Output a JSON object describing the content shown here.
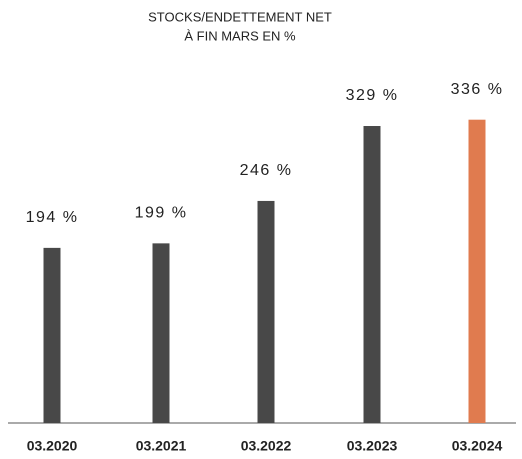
{
  "chart_data": {
    "type": "bar",
    "title": [
      "STOCKS/ENDETTEMENT NET",
      "À FIN MARS EN %"
    ],
    "categories": [
      "03.2020",
      "03.2021",
      "03.2022",
      "03.2023",
      "03.2024"
    ],
    "values": [
      194,
      199,
      246,
      329,
      336
    ],
    "value_labels": [
      "194 %",
      "199 %",
      "246 %",
      "329 %",
      "336 %"
    ],
    "colors": [
      "#484848",
      "#484848",
      "#484848",
      "#484848",
      "#e07b4f"
    ],
    "ylim": [
      0,
      370
    ]
  }
}
